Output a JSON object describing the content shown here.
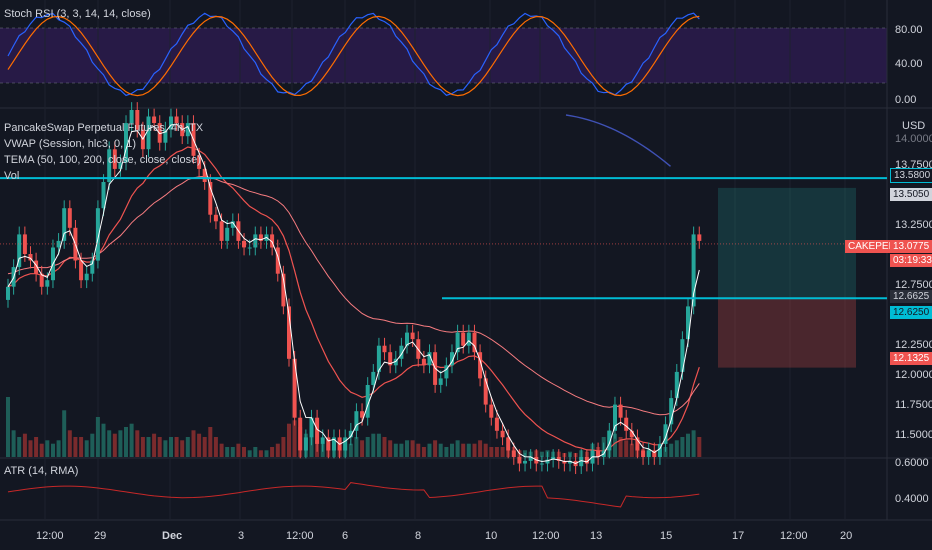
{
  "panes": {
    "stoch": {
      "legend": "Stoch RSI (3, 3, 14, 14, close)",
      "ticks": [
        "80.00",
        "40.00",
        "0.00"
      ]
    },
    "main": {
      "legend": [
        "PancakeSwap Perpetual Futures, 4h, TX",
        "VWAP (Session, hlc3, 0, 1)",
        "TEMA (50, 100, 200, close, close, close)",
        "Vol"
      ],
      "currency": "USD",
      "ticks": [
        "14.0000",
        "13.7500",
        "13.2500",
        "12.7500",
        "12.2500",
        "12.0000",
        "11.7500",
        "11.5000"
      ]
    },
    "atr": {
      "legend": "ATR (14, RMA)",
      "ticks": [
        "0.6000",
        "0.4000"
      ]
    }
  },
  "tags": {
    "r1": {
      "text": "13.5800"
    },
    "r2": {
      "text": "13.5050"
    },
    "sym": {
      "text": "CAKEPERP"
    },
    "price": {
      "text": "13.0775"
    },
    "timer": {
      "text": "03:19:33"
    },
    "s1": {
      "text": "12.6625"
    },
    "s2": {
      "text": "12.6250"
    },
    "s3": {
      "text": "12.1325"
    }
  },
  "x_labels": [
    "12:00",
    "29",
    "Dec",
    "3",
    "12:00",
    "6",
    "8",
    "10",
    "12:00",
    "13",
    "15",
    "17",
    "12:00",
    "20"
  ],
  "chart_data": {
    "type": "candlestick",
    "symbol": "CAKEPERP",
    "timeframe": "4h",
    "ylim": [
      11.45,
      14.1
    ],
    "levels": [
      13.58,
      12.6625
    ],
    "last_price": 13.0775,
    "position": {
      "entry": 12.6625,
      "target": 13.505,
      "stop": 12.1325
    },
    "close": [
      12.75,
      12.9,
      13.15,
      13.0,
      12.95,
      12.85,
      12.75,
      12.8,
      13.05,
      13.1,
      13.35,
      13.2,
      12.95,
      12.8,
      12.85,
      12.95,
      13.35,
      13.55,
      13.8,
      13.65,
      13.7,
      14.0,
      14.1,
      13.95,
      13.8,
      14.05,
      14.0,
      13.85,
      13.95,
      14.05,
      14.0,
      13.9,
      14.0,
      13.75,
      13.65,
      13.55,
      13.3,
      13.25,
      13.1,
      13.2,
      13.25,
      13.1,
      13.05,
      13.05,
      13.15,
      13.1,
      13.15,
      13.05,
      12.85,
      12.6,
      12.2,
      11.75,
      11.5,
      11.6,
      11.75,
      11.55,
      11.6,
      11.5,
      11.6,
      11.5,
      11.6,
      11.65,
      11.8,
      11.75,
      12.0,
      12.1,
      12.3,
      12.25,
      12.15,
      12.2,
      12.3,
      12.4,
      12.35,
      12.2,
      12.15,
      12.25,
      12.0,
      12.05,
      12.15,
      12.25,
      12.4,
      12.3,
      12.4,
      12.25,
      12.05,
      11.85,
      11.75,
      11.65,
      11.6,
      11.5,
      11.45,
      11.4,
      11.42,
      11.45,
      11.4,
      11.4,
      11.43,
      11.45,
      11.42,
      11.4,
      11.42,
      11.38,
      11.45,
      11.4,
      11.5,
      11.45,
      11.5,
      11.65,
      11.85,
      11.75,
      11.65,
      11.6,
      11.5,
      11.45,
      11.5,
      11.45,
      11.55,
      11.7,
      11.9,
      12.1,
      12.35,
      12.6,
      13.15,
      13.1
    ],
    "volume": [
      0.9,
      0.4,
      0.3,
      0.35,
      0.25,
      0.3,
      0.2,
      0.25,
      0.2,
      0.25,
      0.7,
      0.4,
      0.3,
      0.3,
      0.25,
      0.35,
      0.6,
      0.5,
      0.4,
      0.35,
      0.4,
      0.45,
      0.5,
      0.4,
      0.3,
      0.3,
      0.35,
      0.3,
      0.25,
      0.3,
      0.3,
      0.25,
      0.3,
      0.4,
      0.35,
      0.3,
      0.45,
      0.3,
      0.2,
      0.15,
      0.15,
      0.2,
      0.15,
      0.1,
      0.15,
      0.1,
      0.1,
      0.15,
      0.2,
      0.3,
      0.5,
      0.55,
      0.45,
      0.35,
      0.3,
      0.25,
      0.2,
      0.2,
      0.15,
      0.15,
      0.2,
      0.2,
      0.3,
      0.25,
      0.3,
      0.35,
      0.35,
      0.3,
      0.25,
      0.2,
      0.2,
      0.25,
      0.25,
      0.2,
      0.15,
      0.2,
      0.25,
      0.2,
      0.15,
      0.2,
      0.25,
      0.2,
      0.2,
      0.2,
      0.25,
      0.2,
      0.15,
      0.15,
      0.15,
      0.1,
      0.15,
      0.1,
      0.1,
      0.08,
      0.1,
      0.08,
      0.1,
      0.08,
      0.08,
      0.06,
      0.08,
      0.06,
      0.1,
      0.08,
      0.2,
      0.15,
      0.3,
      0.4,
      0.35,
      0.3,
      0.25,
      0.2,
      0.15,
      0.12,
      0.12,
      0.1,
      0.12,
      0.15,
      0.2,
      0.25,
      0.3,
      0.35,
      0.4,
      0.3
    ],
    "vwap_color": "#ffffff",
    "tema_colors": [
      "#ef5350",
      "#f77c80",
      "#3f51b5"
    ],
    "up_color": "#26a69a",
    "down_color": "#ef5350"
  }
}
